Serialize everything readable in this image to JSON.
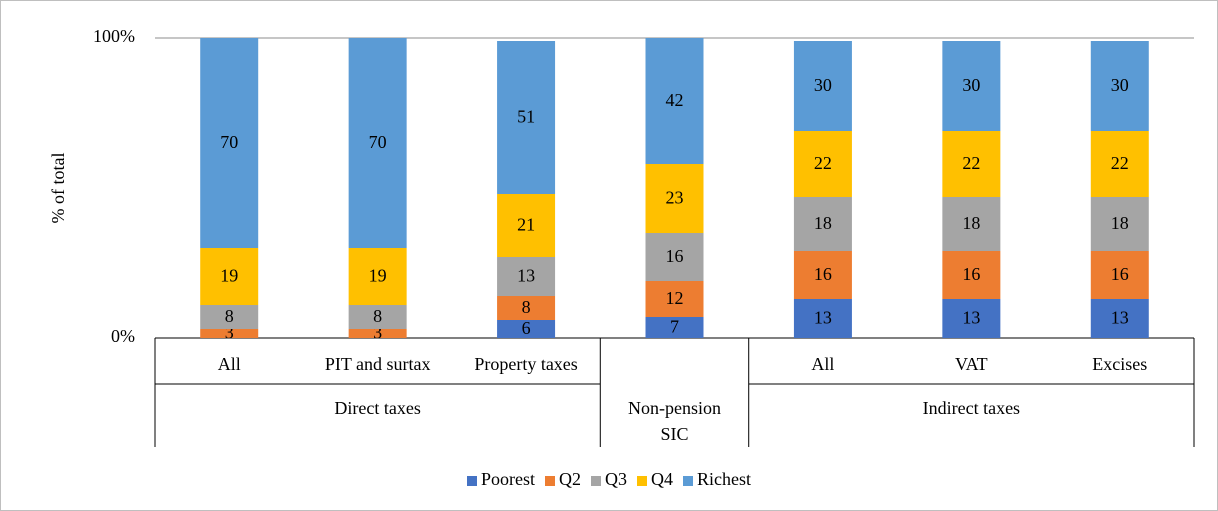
{
  "chart_data": {
    "type": "stacked_bar",
    "y_label": "% of total",
    "categories": [
      "All",
      "PIT and surtax",
      "Property taxes",
      null,
      "All",
      "VAT",
      "Excises"
    ],
    "groups": [
      "Direct taxes",
      "Direct taxes",
      "Direct taxes",
      "Non-pension SIC",
      "Indirect taxes",
      "Indirect taxes",
      "Indirect taxes"
    ],
    "series": [
      {
        "name": "Poorest",
        "color": "#4472c4",
        "values": [
          0,
          0,
          6,
          7,
          13,
          13,
          13
        ]
      },
      {
        "name": "Q2",
        "color": "#ed7d31",
        "values": [
          3,
          3,
          8,
          12,
          16,
          16,
          16
        ]
      },
      {
        "name": "Q3",
        "color": "#a5a5a5",
        "values": [
          8,
          8,
          13,
          16,
          18,
          18,
          18
        ]
      },
      {
        "name": "Q4",
        "color": "#ffc000",
        "values": [
          19,
          19,
          21,
          23,
          22,
          22,
          22
        ]
      },
      {
        "name": "Richest",
        "color": "#5b9bd5",
        "values": [
          70,
          70,
          51,
          42,
          30,
          30,
          30
        ]
      }
    ],
    "ylim": [
      0,
      100
    ],
    "yticks": [
      {
        "value": 0,
        "label": "0%"
      },
      {
        "value": 100,
        "label": "100%"
      }
    ],
    "legend": "bottom"
  }
}
